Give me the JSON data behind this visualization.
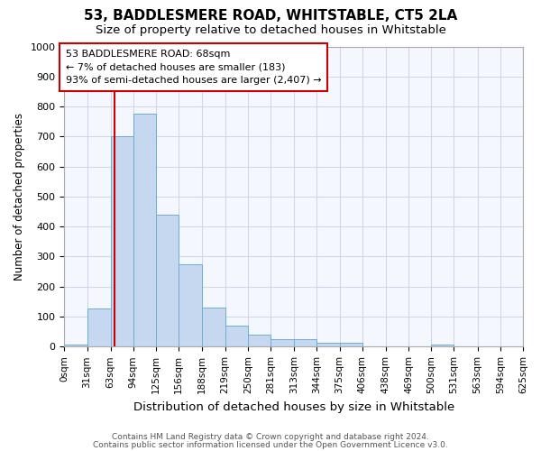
{
  "title": "53, BADDLESMERE ROAD, WHITSTABLE, CT5 2LA",
  "subtitle": "Size of property relative to detached houses in Whitstable",
  "xlabel": "Distribution of detached houses by size in Whitstable",
  "ylabel": "Number of detached properties",
  "footnote1": "Contains HM Land Registry data © Crown copyright and database right 2024.",
  "footnote2": "Contains public sector information licensed under the Open Government Licence v3.0.",
  "bin_edges": [
    0,
    31,
    63,
    94,
    125,
    156,
    188,
    219,
    250,
    281,
    313,
    344,
    375,
    406,
    438,
    469,
    500,
    531,
    563,
    594,
    625
  ],
  "bar_heights": [
    8,
    128,
    700,
    775,
    440,
    275,
    130,
    70,
    40,
    25,
    25,
    12,
    12,
    0,
    0,
    0,
    8,
    0,
    0,
    0
  ],
  "bar_color": "#c5d8ef",
  "bar_edge_color": "#6aaed6",
  "property_size": 68,
  "red_line_color": "#cc0000",
  "annotation_line1": "53 BADDLESMERE ROAD: 68sqm",
  "annotation_line2": "← 7% of detached houses are smaller (183)",
  "annotation_line3": "93% of semi-detached houses are larger (2,407) →",
  "annotation_box_color": "#ffffff",
  "annotation_box_edge_color": "#cc0000",
  "ylim": [
    0,
    1000
  ],
  "yticks": [
    0,
    100,
    200,
    300,
    400,
    500,
    600,
    700,
    800,
    900,
    1000
  ],
  "grid_color": "#d0d8e8",
  "background_color": "#ffffff",
  "plot_bg_color": "#f5f7ff",
  "title_fontsize": 11,
  "subtitle_fontsize": 9.5
}
